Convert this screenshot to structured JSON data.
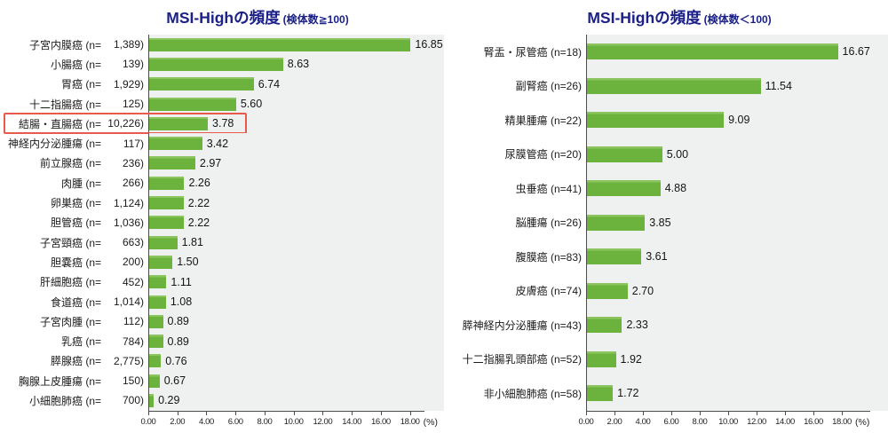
{
  "page": {
    "background": "#ffffff"
  },
  "chart_data": [
    {
      "type": "bar",
      "orientation": "horizontal",
      "title": "MSI-Highの頻度",
      "title_note": "(検体数≧100)",
      "title_color": "#1b2188",
      "bar_color": "#6cb33e",
      "plot_background": "#eff1f0",
      "unit": "(%)",
      "xlim": [
        0,
        19
      ],
      "xticks": [
        0,
        2,
        4,
        6,
        8,
        10,
        12,
        14,
        16,
        18
      ],
      "xtick_labels": [
        "0.00",
        "2.00",
        "4.00",
        "6.00",
        "8.00",
        "10.00",
        "12.00",
        "14.00",
        "16.00",
        "18.00"
      ],
      "grid": false,
      "align_n_column": true,
      "highlight_index": 4,
      "highlight_color": "#e85a4e",
      "rows": [
        {
          "label": "子宮内膜癌",
          "n": "1,389",
          "value": 16.85,
          "value_label": "16.85"
        },
        {
          "label": "小腸癌",
          "n": "139",
          "value": 8.63,
          "value_label": "8.63"
        },
        {
          "label": "胃癌",
          "n": "1,929",
          "value": 6.74,
          "value_label": "6.74"
        },
        {
          "label": "十二指腸癌",
          "n": "125",
          "value": 5.6,
          "value_label": "5.60"
        },
        {
          "label": "結腸・直腸癌",
          "n": "10,226",
          "value": 3.78,
          "value_label": "3.78"
        },
        {
          "label": "神経内分泌腫瘍",
          "n": "117",
          "value": 3.42,
          "value_label": "3.42"
        },
        {
          "label": "前立腺癌",
          "n": "236",
          "value": 2.97,
          "value_label": "2.97"
        },
        {
          "label": "肉腫",
          "n": "266",
          "value": 2.26,
          "value_label": "2.26"
        },
        {
          "label": "卵巣癌",
          "n": "1,124",
          "value": 2.22,
          "value_label": "2.22"
        },
        {
          "label": "胆管癌",
          "n": "1,036",
          "value": 2.22,
          "value_label": "2.22"
        },
        {
          "label": "子宮頸癌",
          "n": "663",
          "value": 1.81,
          "value_label": "1.81"
        },
        {
          "label": "胆嚢癌",
          "n": "200",
          "value": 1.5,
          "value_label": "1.50"
        },
        {
          "label": "肝細胞癌",
          "n": "452",
          "value": 1.11,
          "value_label": "1.11"
        },
        {
          "label": "食道癌",
          "n": "1,014",
          "value": 1.08,
          "value_label": "1.08"
        },
        {
          "label": "子宮肉腫",
          "n": "112",
          "value": 0.89,
          "value_label": "0.89"
        },
        {
          "label": "乳癌",
          "n": "784",
          "value": 0.89,
          "value_label": "0.89"
        },
        {
          "label": "膵腺癌",
          "n": "2,775",
          "value": 0.76,
          "value_label": "0.76"
        },
        {
          "label": "胸腺上皮腫瘍",
          "n": "150",
          "value": 0.67,
          "value_label": "0.67"
        },
        {
          "label": "小細胞肺癌",
          "n": "700",
          "value": 0.29,
          "value_label": "0.29"
        }
      ]
    },
    {
      "type": "bar",
      "orientation": "horizontal",
      "title": "MSI-Highの頻度",
      "title_note": "(検体数＜100)",
      "title_color": "#1b2188",
      "bar_color": "#6cb33e",
      "plot_background": "#eff1f0",
      "unit": "(%)",
      "xlim": [
        0,
        20
      ],
      "xticks": [
        0,
        2,
        4,
        6,
        8,
        10,
        12,
        14,
        16,
        18
      ],
      "xtick_labels": [
        "0.00",
        "2.00",
        "4.00",
        "6.00",
        "8.00",
        "10.00",
        "12.00",
        "14.00",
        "16.00",
        "18.00"
      ],
      "grid": false,
      "align_n_column": false,
      "highlight_index": null,
      "rows": [
        {
          "label": "腎盂・尿管癌",
          "n": "18",
          "value": 16.67,
          "value_label": "16.67"
        },
        {
          "label": "副腎癌",
          "n": "26",
          "value": 11.54,
          "value_label": "11.54"
        },
        {
          "label": "精巣腫瘍",
          "n": "22",
          "value": 9.09,
          "value_label": "9.09"
        },
        {
          "label": "尿膜管癌",
          "n": "20",
          "value": 5.0,
          "value_label": "5.00"
        },
        {
          "label": "虫垂癌",
          "n": "41",
          "value": 4.88,
          "value_label": "4.88"
        },
        {
          "label": "脳腫瘍",
          "n": "26",
          "value": 3.85,
          "value_label": "3.85"
        },
        {
          "label": "腹膜癌",
          "n": "83",
          "value": 3.61,
          "value_label": "3.61"
        },
        {
          "label": "皮膚癌",
          "n": "74",
          "value": 2.7,
          "value_label": "2.70"
        },
        {
          "label": "膵神経内分泌腫瘍",
          "n": "43",
          "value": 2.33,
          "value_label": "2.33"
        },
        {
          "label": "十二指腸乳頭部癌",
          "n": "52",
          "value": 1.92,
          "value_label": "1.92"
        },
        {
          "label": "非小細胞肺癌",
          "n": "58",
          "value": 1.72,
          "value_label": "1.72"
        }
      ]
    }
  ]
}
